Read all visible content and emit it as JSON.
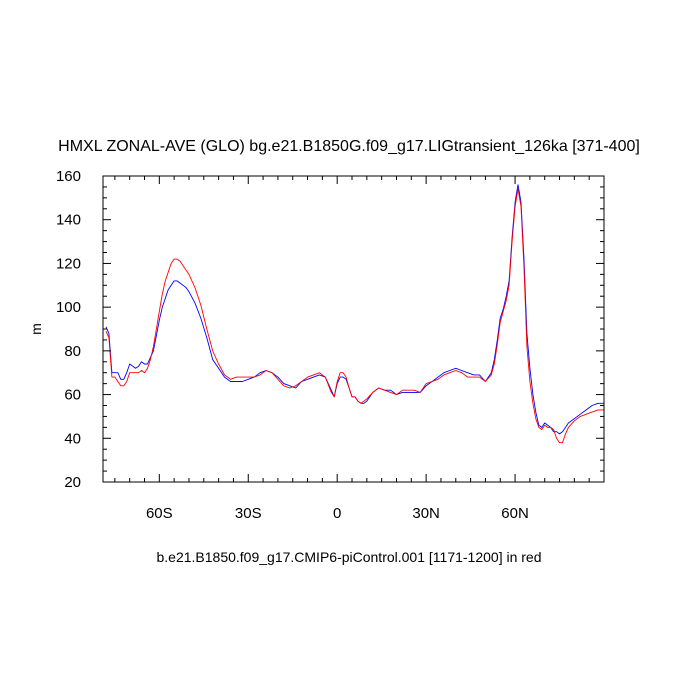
{
  "chart_data": {
    "type": "line",
    "title": "HMXL ZONAL-AVE (GLO) bg.e21.B1850G.f09_g17.LIGtransient_126ka [371-400]",
    "ylabel": "m",
    "caption": "b.e21.B1850.f09_g17.CMIP6-piControl.001 [1171-1200] in red",
    "xlim": [
      -79,
      90
    ],
    "ylim": [
      20,
      160
    ],
    "xticks": [
      {
        "value": -60,
        "label": "60S"
      },
      {
        "value": -30,
        "label": "30S"
      },
      {
        "value": 0,
        "label": "0"
      },
      {
        "value": 30,
        "label": "30N"
      },
      {
        "value": 60,
        "label": "60N"
      }
    ],
    "yticks": [
      {
        "value": 20,
        "label": "20"
      },
      {
        "value": 40,
        "label": "40"
      },
      {
        "value": 60,
        "label": "60"
      },
      {
        "value": 80,
        "label": "80"
      },
      {
        "value": 100,
        "label": "100"
      },
      {
        "value": 120,
        "label": "120"
      },
      {
        "value": 140,
        "label": "140"
      },
      {
        "value": 160,
        "label": "160"
      }
    ],
    "series": [
      {
        "color": "#0000ff",
        "x": [
          -78,
          -77,
          -76,
          -75,
          -74,
          -73,
          -72,
          -71,
          -70,
          -68,
          -67,
          -66,
          -65,
          -64,
          -63,
          -62,
          -61,
          -60,
          -59,
          -58,
          -57,
          -56,
          -55,
          -54,
          -53,
          -52,
          -51,
          -50,
          -48,
          -46,
          -44,
          -42,
          -40,
          -38,
          -36,
          -34,
          -32,
          -30,
          -28,
          -26,
          -24,
          -22,
          -20,
          -18,
          -16,
          -14,
          -12,
          -10,
          -8,
          -6,
          -4,
          -2,
          -1,
          0,
          1,
          2,
          3,
          4,
          5,
          6,
          7,
          8,
          9,
          10,
          12,
          14,
          16,
          18,
          20,
          22,
          24,
          26,
          28,
          30,
          32,
          34,
          36,
          38,
          40,
          42,
          44,
          46,
          48,
          50,
          52,
          53,
          54,
          55,
          56,
          57,
          58,
          59,
          60,
          61,
          62,
          63,
          64,
          65,
          66,
          67,
          68,
          69,
          70,
          71,
          72,
          73,
          74,
          75,
          76,
          77,
          78,
          80,
          82,
          84,
          86,
          88,
          90
        ],
        "y": [
          91,
          88,
          70,
          70,
          70,
          67,
          67,
          70,
          74,
          72,
          73,
          75,
          74,
          74,
          77,
          80,
          87,
          94,
          100,
          104,
          108,
          110,
          112,
          112,
          111,
          110,
          109,
          107,
          102,
          95,
          86,
          76,
          72,
          68,
          66,
          66,
          66,
          67,
          68,
          70,
          71,
          70,
          68,
          65,
          64,
          63,
          66,
          67,
          68,
          69,
          68,
          62,
          59,
          65,
          68,
          68,
          67,
          63,
          59,
          59,
          57,
          56,
          56,
          57,
          61,
          63,
          62,
          62,
          60,
          61,
          61,
          61,
          61,
          64,
          66,
          68,
          70,
          71,
          72,
          71,
          70,
          69,
          69,
          66,
          70,
          76,
          85,
          95,
          99,
          105,
          112,
          132,
          148,
          156,
          148,
          122,
          88,
          72,
          60,
          52,
          46,
          45,
          47,
          46,
          45,
          43,
          43,
          42,
          43,
          45,
          47,
          49,
          51,
          53,
          55,
          56,
          56
        ]
      },
      {
        "color": "#ff0000",
        "x": [
          -78,
          -77,
          -76,
          -75,
          -74,
          -73,
          -72,
          -71,
          -70,
          -68,
          -67,
          -66,
          -65,
          -64,
          -63,
          -62,
          -61,
          -60,
          -59,
          -58,
          -57,
          -56,
          -55,
          -54,
          -53,
          -52,
          -51,
          -50,
          -48,
          -46,
          -44,
          -42,
          -40,
          -38,
          -36,
          -34,
          -32,
          -30,
          -28,
          -26,
          -24,
          -22,
          -20,
          -18,
          -16,
          -14,
          -12,
          -10,
          -8,
          -6,
          -4,
          -2,
          -1,
          0,
          1,
          2,
          3,
          4,
          5,
          6,
          7,
          8,
          9,
          10,
          12,
          14,
          16,
          18,
          20,
          22,
          24,
          26,
          28,
          30,
          32,
          34,
          36,
          38,
          40,
          42,
          44,
          46,
          48,
          50,
          52,
          53,
          54,
          55,
          56,
          57,
          58,
          59,
          60,
          61,
          62,
          63,
          64,
          65,
          66,
          67,
          68,
          69,
          70,
          71,
          72,
          73,
          74,
          75,
          76,
          77,
          78,
          80,
          82,
          84,
          86,
          88,
          90
        ],
        "y": [
          89,
          86,
          68,
          68,
          66,
          64,
          64,
          66,
          70,
          70,
          70,
          71,
          70,
          72,
          76,
          82,
          90,
          98,
          106,
          112,
          116,
          120,
          122,
          122,
          121,
          119,
          117,
          115,
          109,
          101,
          90,
          80,
          74,
          69,
          67,
          68,
          68,
          68,
          68,
          69,
          71,
          70,
          67,
          64,
          63,
          64,
          66,
          68,
          69,
          70,
          68,
          61,
          59,
          66,
          70,
          70,
          68,
          63,
          59,
          59,
          57,
          56,
          57,
          58,
          61,
          63,
          62,
          61,
          60,
          62,
          62,
          62,
          61,
          65,
          66,
          67,
          69,
          70,
          71,
          70,
          68,
          68,
          68,
          66,
          69,
          74,
          83,
          93,
          98,
          103,
          110,
          130,
          146,
          154,
          146,
          118,
          82,
          66,
          56,
          49,
          45,
          44,
          46,
          45,
          45,
          44,
          40,
          38,
          38,
          42,
          45,
          48,
          50,
          51,
          52,
          53,
          53
        ]
      }
    ]
  }
}
